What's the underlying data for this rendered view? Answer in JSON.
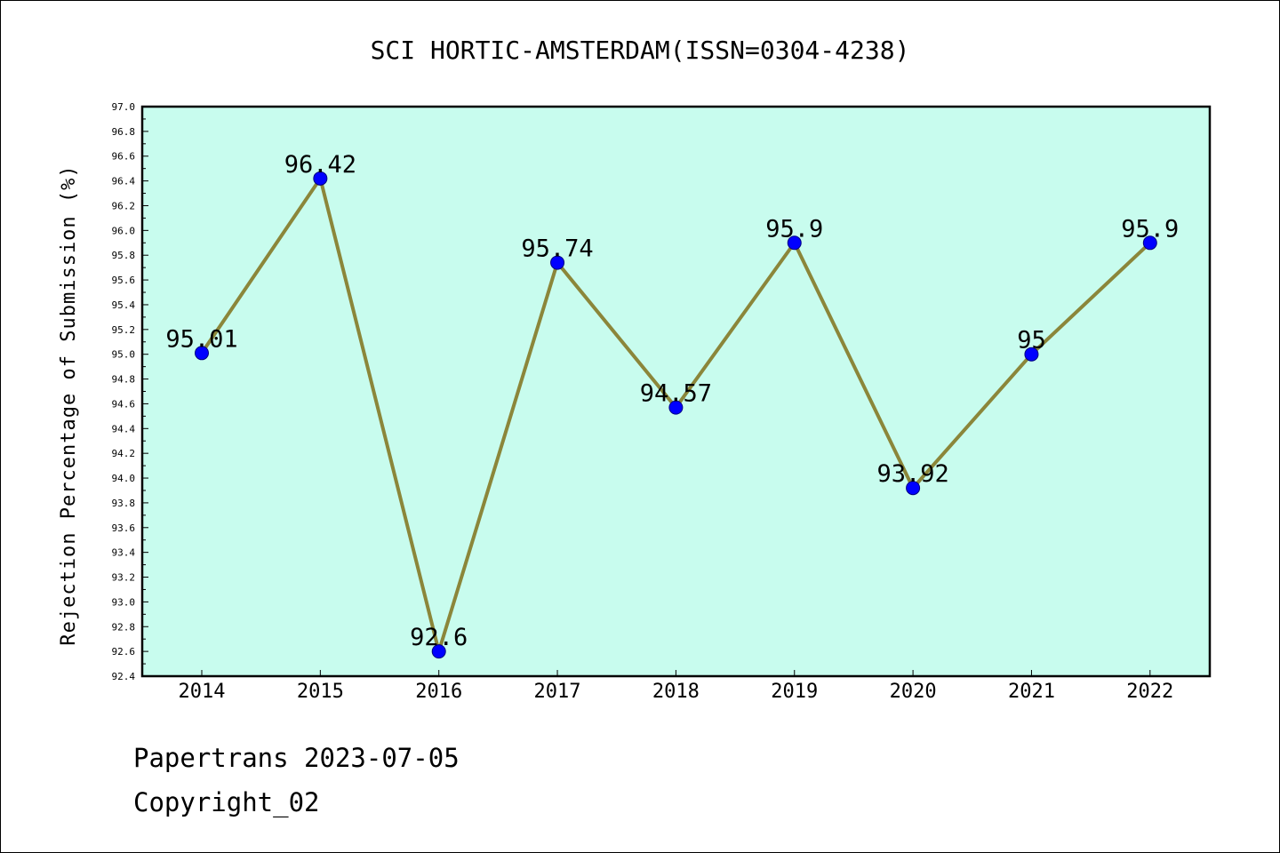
{
  "chart_data": {
    "type": "line",
    "title": "SCI HORTIC-AMSTERDAM(ISSN=0304-4238)",
    "xlabel": "",
    "ylabel": "Rejection Percentage of Submission (%)",
    "categories": [
      "2014",
      "2015",
      "2016",
      "2017",
      "2018",
      "2019",
      "2020",
      "2021",
      "2022"
    ],
    "values": [
      95.01,
      96.42,
      92.6,
      95.74,
      94.57,
      95.9,
      93.92,
      95,
      95.9
    ],
    "data_labels": [
      "95.01",
      "96.42",
      "92.6",
      "95.74",
      "94.57",
      "95.9",
      "93.92",
      "95",
      "95.9"
    ],
    "ylim": [
      92.4,
      97.0
    ],
    "yticks": [
      "92.4",
      "92.6",
      "92.8",
      "93.0",
      "93.2",
      "93.4",
      "93.6",
      "93.8",
      "94.0",
      "94.2",
      "94.4",
      "94.6",
      "94.8",
      "95.0",
      "95.2",
      "95.4",
      "95.6",
      "95.8",
      "96.0",
      "96.2",
      "96.4",
      "96.6",
      "96.8",
      "97.0"
    ],
    "grid": false,
    "colors": {
      "plot_background": "#c8fcee",
      "line": "#8b863a",
      "marker": "#0000ff"
    }
  },
  "footer": {
    "line1": "Papertrans 2023-07-05",
    "line2": "Copyright_02"
  }
}
